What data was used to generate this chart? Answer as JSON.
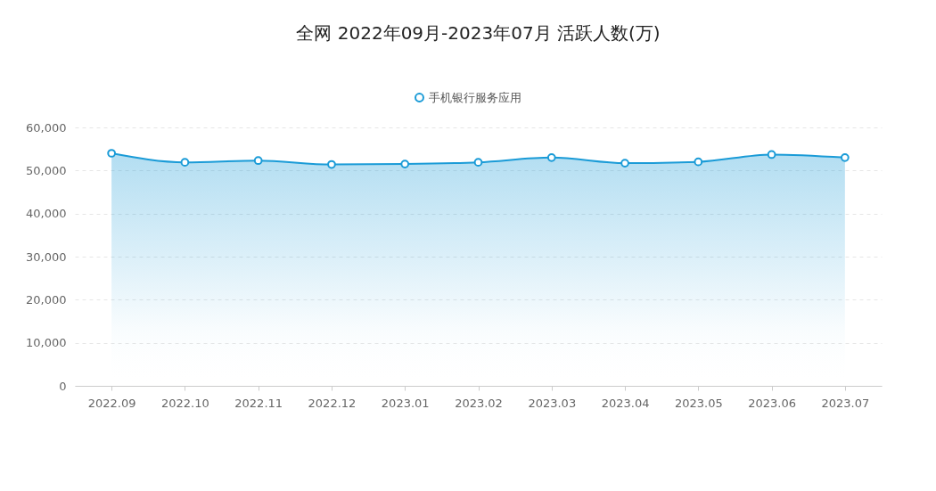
{
  "chart_data": {
    "type": "area",
    "title": "全网 2022年09月-2023年07月 活跃人数(万)",
    "categories": [
      "2022.09",
      "2022.10",
      "2022.11",
      "2022.12",
      "2023.01",
      "2023.02",
      "2023.03",
      "2023.04",
      "2023.05",
      "2023.06",
      "2023.07"
    ],
    "series": [
      {
        "name": "手机银行服务应用",
        "color": "#1a9bd7",
        "values": [
          54000,
          51900,
          52300,
          51400,
          51500,
          51900,
          53000,
          51700,
          52000,
          53700,
          53000
        ]
      }
    ],
    "ylim": [
      0,
      60000
    ],
    "yticks": [
      0,
      {
        "value": 10000,
        "label": "10,000"
      },
      {
        "value": 20000,
        "label": "20,000"
      },
      {
        "value": 30000,
        "label": "30,000"
      },
      {
        "value": 40000,
        "label": "40,000"
      },
      {
        "value": 50000,
        "label": "50,000"
      },
      {
        "value": 60000,
        "label": "60,000"
      }
    ],
    "grid": "y",
    "legend": "top",
    "marker": "circle"
  }
}
